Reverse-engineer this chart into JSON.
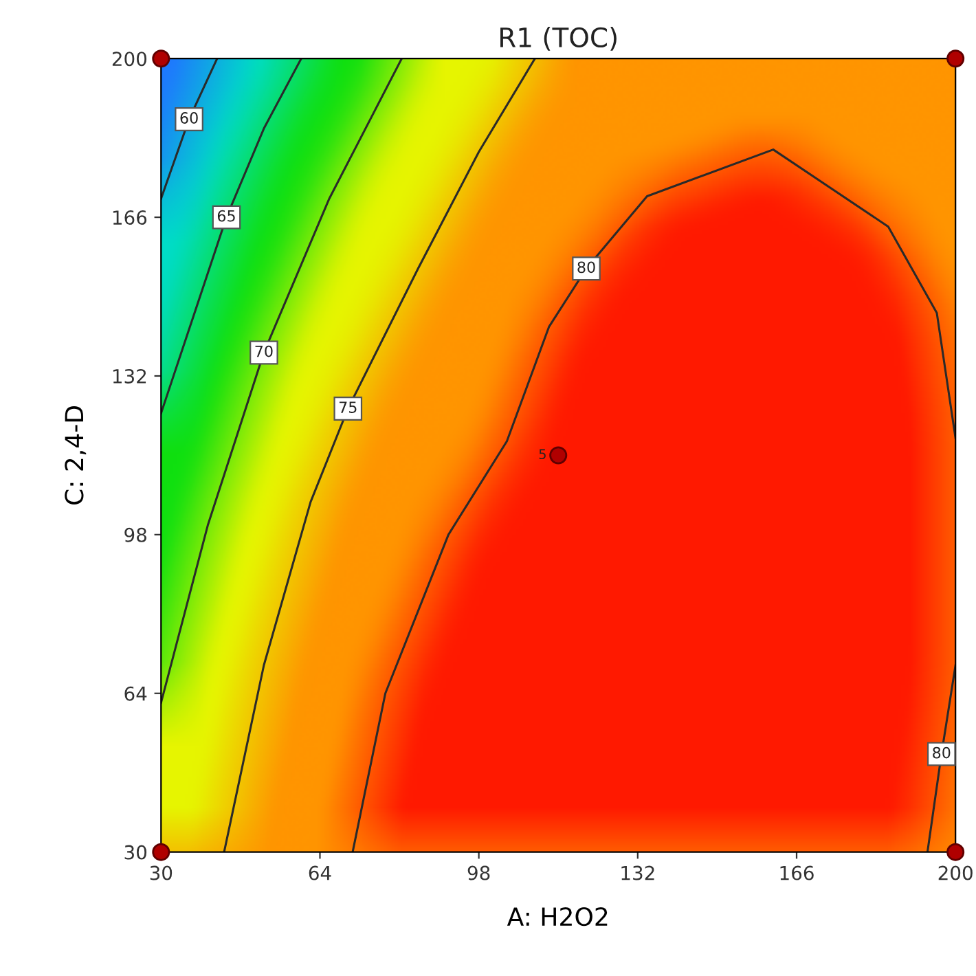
{
  "chart_data": {
    "type": "line",
    "title": "R1 (TOC)",
    "xlabel": "A: H2O2",
    "ylabel": "C: 2,4-D",
    "xlim": [
      30,
      200
    ],
    "ylim": [
      30,
      200
    ],
    "xticks": [
      30,
      64,
      98,
      132,
      166,
      200
    ],
    "yticks": [
      30,
      64,
      98,
      132,
      166,
      200
    ],
    "grid": false,
    "legend": false,
    "line_style": "solid",
    "series": [
      {
        "color": "#2a2a2a",
        "x": [
          30,
          36,
          42
        ],
        "values": [
          170,
          187,
          200
        ]
      },
      {
        "color": "#2a2a2a",
        "x": [
          30,
          37,
          44,
          52,
          60
        ],
        "values": [
          124,
          145,
          166,
          185,
          200
        ]
      },
      {
        "color": "#2a2a2a",
        "x": [
          30,
          40,
          52,
          66,
          81.5
        ],
        "values": [
          62,
          100,
          137,
          170,
          200
        ]
      },
      {
        "color": "#2a2a2a",
        "x": [
          43.5,
          52,
          62,
          70,
          85,
          98,
          110
        ],
        "values": [
          30,
          70,
          105,
          125,
          155,
          180,
          200
        ]
      },
      {
        "color": "#2a2a2a",
        "x": [
          71,
          78,
          91.5,
          104,
          113,
          121,
          134,
          161,
          185.6,
          196,
          200
        ],
        "values": [
          30,
          64,
          98,
          118,
          142.5,
          155,
          170.5,
          180.5,
          164,
          145.5,
          118.7
        ]
      },
      {
        "color": "#2a2a2a",
        "x": [
          194,
          197,
          200
        ],
        "values": [
          30,
          51,
          70
        ]
      },
      {
        "type": "scatter",
        "color": "#b00000",
        "marker": "circle",
        "x": [
          30,
          30,
          200,
          200,
          115
        ],
        "values": [
          30,
          200,
          200,
          30,
          115
        ]
      }
    ],
    "annotations": [
      {
        "text": "60",
        "x": 36,
        "y": 187
      },
      {
        "text": "65",
        "x": 44,
        "y": 166
      },
      {
        "text": "70",
        "x": 52,
        "y": 137
      },
      {
        "text": "75",
        "x": 70,
        "y": 125
      },
      {
        "text": "80",
        "x": 121,
        "y": 155
      },
      {
        "text": "80",
        "x": 197,
        "y": 51
      },
      {
        "text": "5",
        "x": 115,
        "y": 115
      }
    ]
  }
}
